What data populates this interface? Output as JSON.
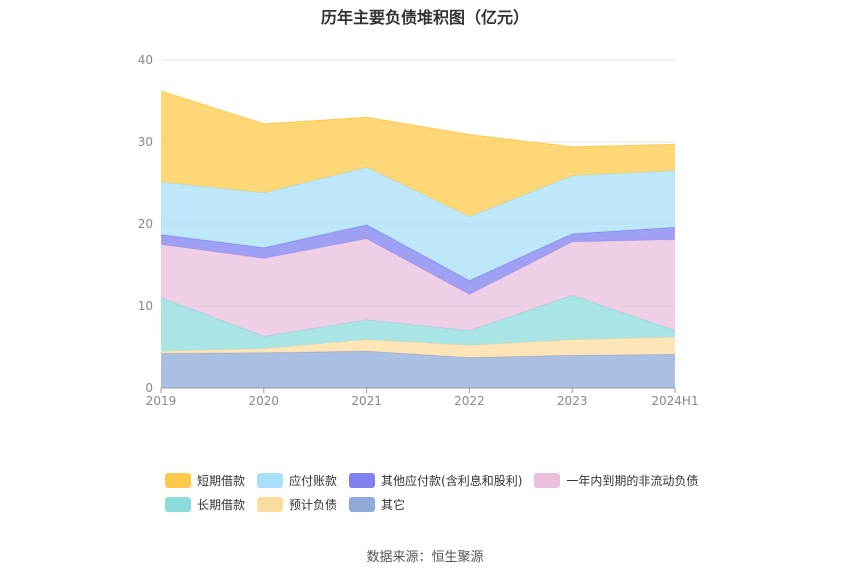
{
  "chart_data": {
    "type": "area",
    "stacked": true,
    "title": "历年主要负债堆积图（亿元）",
    "xlabel": "",
    "ylabel": "",
    "categories": [
      "2019",
      "2020",
      "2021",
      "2022",
      "2023",
      "2024H1"
    ],
    "ylim": [
      0,
      40
    ],
    "yticks": [
      0,
      10,
      20,
      30,
      40
    ],
    "grid": true,
    "legend_position": "bottom",
    "series": [
      {
        "name": "其它",
        "color": "#8fa9d8",
        "values": [
          4.2,
          4.3,
          4.5,
          3.7,
          4.0,
          4.1
        ]
      },
      {
        "name": "预计负债",
        "color": "#fddca0",
        "values": [
          0.3,
          0.5,
          1.4,
          1.5,
          1.9,
          2.1
        ]
      },
      {
        "name": "长期借款",
        "color": "#8ddcdc",
        "values": [
          6.5,
          1.5,
          2.4,
          1.8,
          5.4,
          0.8
        ]
      },
      {
        "name": "一年内到期的非流动负债",
        "color": "#eabfdc",
        "values": [
          6.5,
          9.5,
          9.9,
          4.4,
          6.5,
          11.1
        ]
      },
      {
        "name": "其他应付款(含利息和股利)",
        "color": "#7f7ff0",
        "values": [
          1.2,
          1.3,
          1.7,
          1.7,
          1.0,
          1.5
        ]
      },
      {
        "name": "应付账款",
        "color": "#a8e0f8",
        "values": [
          6.4,
          6.7,
          7.0,
          7.8,
          7.1,
          6.9
        ]
      },
      {
        "name": "短期借款",
        "color": "#fdc94a",
        "values": [
          11.1,
          8.4,
          6.1,
          10.0,
          3.5,
          3.2
        ]
      }
    ],
    "legend_order": [
      "短期借款",
      "应付账款",
      "其他应付款(含利息和股利)",
      "一年内到期的非流动负债",
      "长期借款",
      "预计负债",
      "其它"
    ]
  },
  "footer": {
    "source": "数据来源：恒生聚源"
  }
}
